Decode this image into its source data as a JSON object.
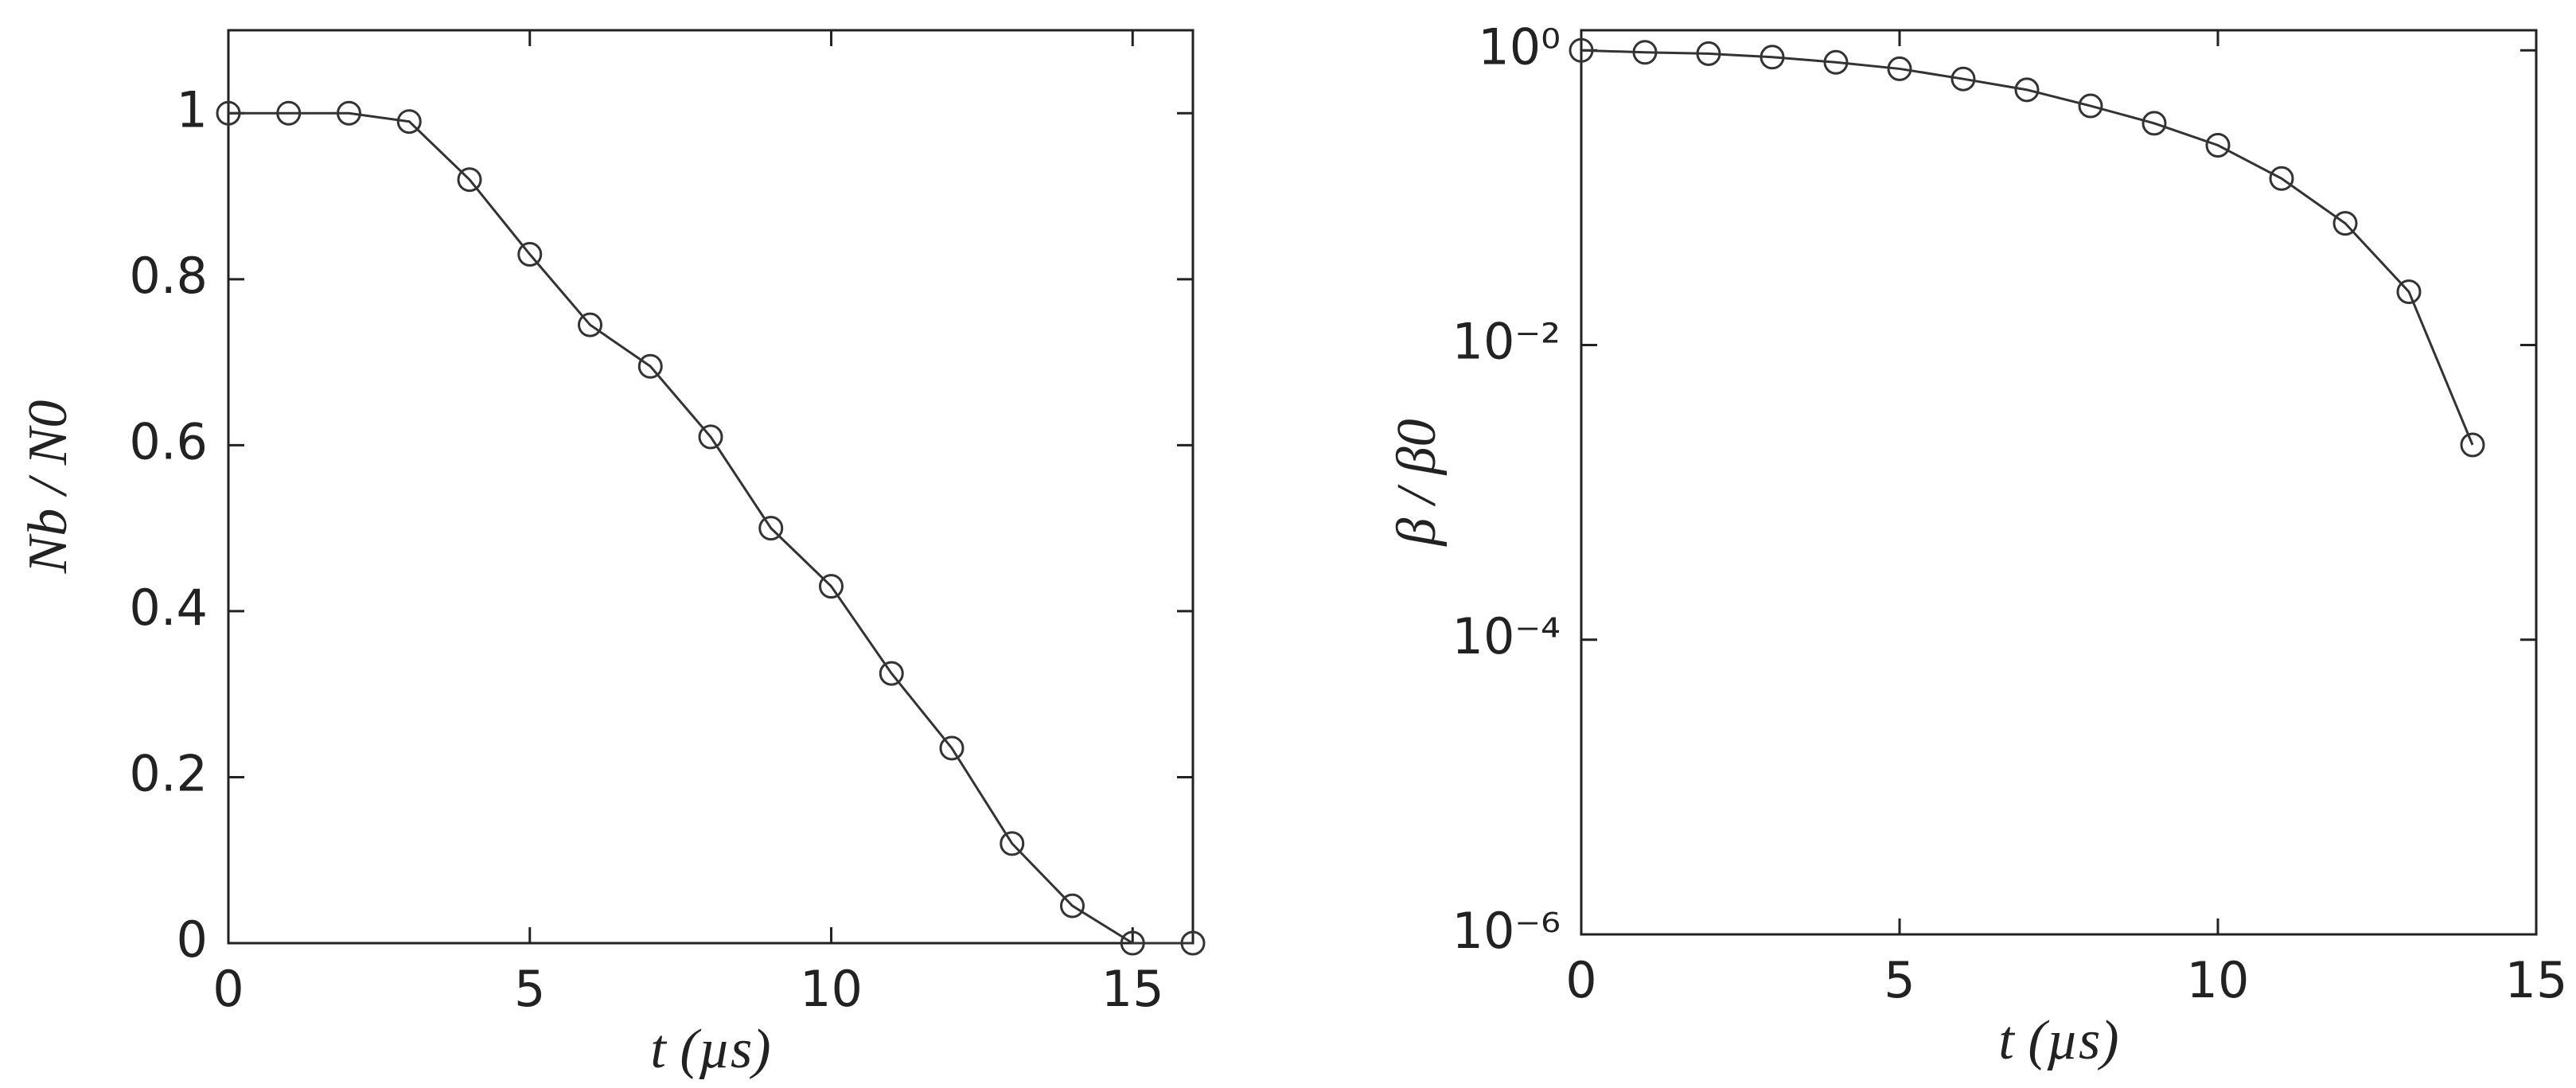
{
  "chart_data": [
    {
      "type": "line",
      "xlabel": "t (µs)",
      "ylabel": "Nb / N0",
      "x": [
        0,
        1,
        2,
        3,
        4,
        5,
        6,
        7,
        8,
        9,
        10,
        11,
        12,
        13,
        14,
        15,
        16
      ],
      "series": [
        {
          "color": "#333333",
          "values": [
            1,
            1,
            1,
            0.99,
            0.92,
            0.83,
            0.745,
            0.695,
            0.61,
            0.5,
            0.43,
            0.325,
            0.235,
            0.12,
            0.045,
            0,
            0
          ]
        }
      ],
      "xlim": [
        0,
        16
      ],
      "xticks": [
        0,
        5,
        10,
        15
      ],
      "ylim": [
        0,
        1.1
      ],
      "yticks": [
        0,
        0.2,
        0.4,
        0.6,
        0.8,
        1
      ],
      "log": false
    },
    {
      "type": "line",
      "xlabel": "t (µs)",
      "ylabel": "β / β0",
      "x": [
        0,
        1,
        2,
        3,
        4,
        5,
        6,
        7,
        8,
        9,
        10,
        11,
        12,
        13,
        14
      ],
      "series": [
        {
          "color": "#333333",
          "values": [
            1,
            0.97,
            0.95,
            0.9,
            0.83,
            0.75,
            0.64,
            0.54,
            0.42,
            0.32,
            0.227,
            0.135,
            0.067,
            0.023,
            0.0021
          ]
        }
      ],
      "xlim": [
        0,
        15
      ],
      "xticks": [
        0,
        5,
        10,
        15
      ],
      "ylim": [
        1e-06,
        1.37
      ],
      "yticks": [
        {
          "value": 1e-06,
          "label": "10⁻⁶"
        },
        {
          "value": 0.0001,
          "label": "10⁻⁴"
        },
        {
          "value": 0.01,
          "label": "10⁻²"
        },
        {
          "value": 1,
          "label": "10⁰"
        }
      ],
      "log": true
    }
  ]
}
